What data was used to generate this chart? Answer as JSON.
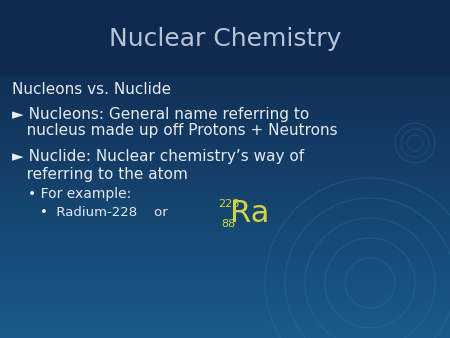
{
  "title": "Nuclear Chemistry",
  "title_color": "#b8c4d4",
  "title_fontsize": 18,
  "bg_top": "#0d2347",
  "bg_bottom": "#1a5a8a",
  "text_color_white": "#e8eaf0",
  "text_color_yellow": "#d4d440",
  "subtitle": "Nucleons vs. Nuclide",
  "subtitle_fontsize": 11,
  "bullet1_line1": "► Nucleons: General name referring to",
  "bullet1_line2": "   nucleus made up off Protons + Neutrons",
  "bullet2_line1": "► Nuclide: Nuclear chemistry’s way of",
  "bullet2_line2": "   referring to the atom",
  "sub_bullet": "• For example:",
  "sub_sub_bullet": "•  Radium-228    or",
  "ra_symbol": "Ra",
  "ra_mass": "228",
  "ra_atomic": "88",
  "bullet_fontsize": 11,
  "sub_fontsize": 10,
  "subsub_fontsize": 9.5,
  "ra_fontsize": 22,
  "ra_super_fontsize": 8,
  "figw": 4.5,
  "figh": 3.38,
  "dpi": 100
}
